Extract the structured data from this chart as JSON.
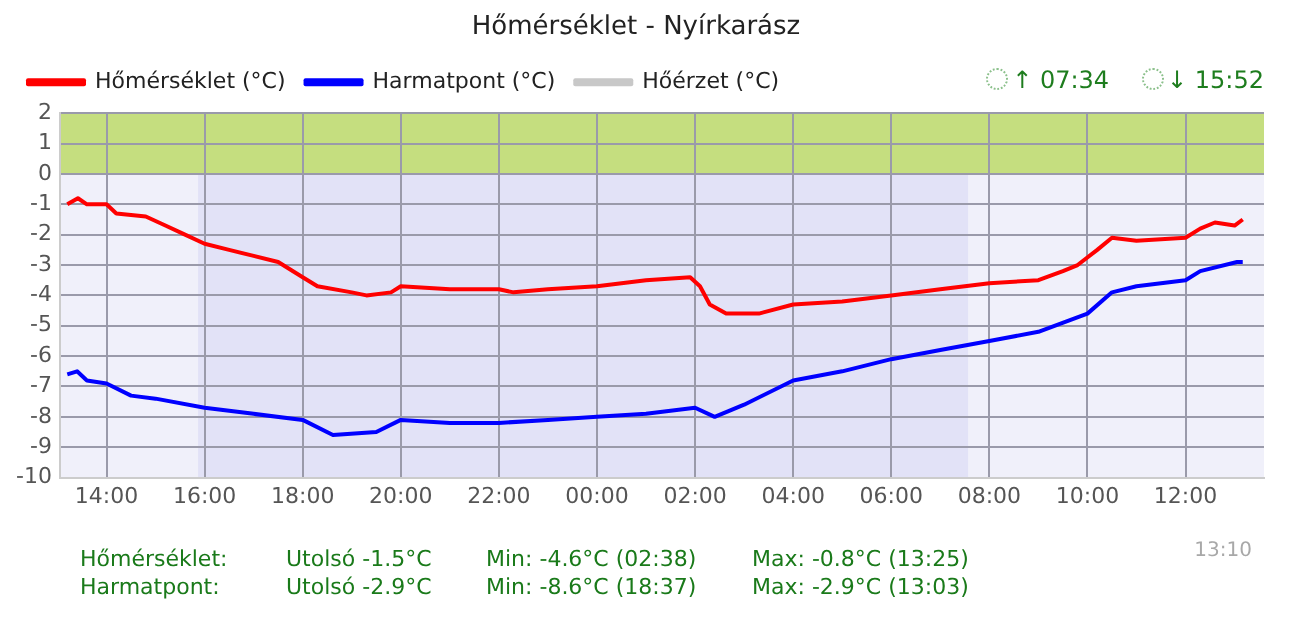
{
  "chart_data": {
    "type": "line",
    "title": "Hőmérséklet - Nyírkarász",
    "xlim": [
      "2000-01-01T13:03",
      "2000-01-02T13:36"
    ],
    "ylim": [
      -10,
      2
    ],
    "xticks": [
      {
        "value": "2000-01-01T14:00",
        "label": "14:00"
      },
      {
        "value": "2000-01-01T16:00",
        "label": "16:00"
      },
      {
        "value": "2000-01-01T18:00",
        "label": "18:00"
      },
      {
        "value": "2000-01-01T20:00",
        "label": "20:00"
      },
      {
        "value": "2000-01-01T22:00",
        "label": "22:00"
      },
      {
        "value": "2000-01-02T00:00",
        "label": "00:00"
      },
      {
        "value": "2000-01-02T02:00",
        "label": "02:00"
      },
      {
        "value": "2000-01-02T04:00",
        "label": "04:00"
      },
      {
        "value": "2000-01-02T06:00",
        "label": "06:00"
      },
      {
        "value": "2000-01-02T08:00",
        "label": "08:00"
      },
      {
        "value": "2000-01-02T10:00",
        "label": "10:00"
      },
      {
        "value": "2000-01-02T12:00",
        "label": "12:00"
      }
    ],
    "yticks": [
      -10,
      -9,
      -8,
      -7,
      -6,
      -5,
      -4,
      -3,
      -2,
      -1,
      0,
      1,
      2
    ],
    "grid": true,
    "legend": "top left",
    "marker": "none",
    "line_style": "solid",
    "series": [
      {
        "name": "Hőmérséklet (°C)",
        "color": "#ff0000",
        "x": [
          "2000-01-01T13:12",
          "2000-01-01T13:25",
          "2000-01-01T13:36",
          "2000-01-01T14:00",
          "2000-01-01T14:12",
          "2000-01-01T14:48",
          "2000-01-01T15:12",
          "2000-01-01T15:36",
          "2000-01-01T16:00",
          "2000-01-01T16:30",
          "2000-01-01T17:00",
          "2000-01-01T17:30",
          "2000-01-01T18:00",
          "2000-01-01T18:18",
          "2000-01-01T19:00",
          "2000-01-01T19:18",
          "2000-01-01T19:48",
          "2000-01-01T20:00",
          "2000-01-01T21:00",
          "2000-01-01T22:00",
          "2000-01-01T22:18",
          "2000-01-01T23:00",
          "2000-01-02T00:00",
          "2000-01-02T01:00",
          "2000-01-02T01:54",
          "2000-01-02T02:06",
          "2000-01-02T02:18",
          "2000-01-02T02:38",
          "2000-01-02T03:18",
          "2000-01-02T04:00",
          "2000-01-02T05:00",
          "2000-01-02T06:00",
          "2000-01-02T07:00",
          "2000-01-02T08:00",
          "2000-01-02T09:00",
          "2000-01-02T09:30",
          "2000-01-02T09:48",
          "2000-01-02T10:12",
          "2000-01-02T10:30",
          "2000-01-02T11:00",
          "2000-01-02T12:00",
          "2000-01-02T12:18",
          "2000-01-02T12:36",
          "2000-01-02T13:00",
          "2000-01-02T13:10"
        ],
        "values": [
          -1.0,
          -0.8,
          -1.0,
          -1.0,
          -1.3,
          -1.4,
          -1.7,
          -2.0,
          -2.3,
          -2.5,
          -2.7,
          -2.9,
          -3.4,
          -3.7,
          -3.9,
          -4.0,
          -3.9,
          -3.7,
          -3.8,
          -3.8,
          -3.9,
          -3.8,
          -3.7,
          -3.5,
          -3.4,
          -3.7,
          -4.3,
          -4.6,
          -4.6,
          -4.3,
          -4.2,
          -4.0,
          -3.8,
          -3.6,
          -3.5,
          -3.2,
          -3.0,
          -2.5,
          -2.1,
          -2.2,
          -2.1,
          -1.8,
          -1.6,
          -1.7,
          -1.5
        ]
      },
      {
        "name": "Harmatpont (°C)",
        "color": "#0000ff",
        "x": [
          "2000-01-01T13:12",
          "2000-01-01T13:24",
          "2000-01-01T13:36",
          "2000-01-01T14:00",
          "2000-01-01T14:30",
          "2000-01-01T15:00",
          "2000-01-01T16:00",
          "2000-01-01T17:00",
          "2000-01-01T18:00",
          "2000-01-01T18:37",
          "2000-01-01T19:30",
          "2000-01-01T20:00",
          "2000-01-01T21:00",
          "2000-01-01T22:00",
          "2000-01-01T23:00",
          "2000-01-02T00:00",
          "2000-01-02T01:00",
          "2000-01-02T02:00",
          "2000-01-02T02:24",
          "2000-01-02T03:00",
          "2000-01-02T04:00",
          "2000-01-02T05:00",
          "2000-01-02T06:00",
          "2000-01-02T07:00",
          "2000-01-02T08:00",
          "2000-01-02T09:00",
          "2000-01-02T10:00",
          "2000-01-02T10:30",
          "2000-01-02T11:00",
          "2000-01-02T12:00",
          "2000-01-02T12:18",
          "2000-01-02T13:03",
          "2000-01-02T13:10"
        ],
        "values": [
          -6.6,
          -6.5,
          -6.8,
          -6.9,
          -7.3,
          -7.4,
          -7.7,
          -7.9,
          -8.1,
          -8.6,
          -8.5,
          -8.1,
          -8.2,
          -8.2,
          -8.1,
          -8.0,
          -7.9,
          -7.7,
          -8.0,
          -7.6,
          -6.8,
          -6.5,
          -6.1,
          -5.8,
          -5.5,
          -5.2,
          -4.6,
          -3.9,
          -3.7,
          -3.5,
          -3.2,
          -2.9,
          -2.9
        ]
      },
      {
        "name": "Hőérzet (°C)",
        "color": "#c8c8c8"
      }
    ],
    "bands": [
      {
        "axis": "x",
        "from": "2000-01-01T15:52",
        "to": "2000-01-02T07:34",
        "color": "#e2e2f7"
      },
      {
        "axis": "y",
        "from": 0,
        "to": 2,
        "color": "#c5de7f"
      }
    ],
    "annotations": [
      "↑ 07:34",
      "↓ 15:52",
      "Hőmérséklet:",
      "Utolsó -1.5°C",
      "Min: -4.6°C (02:38)",
      "Max: -0.8°C (13:25)",
      "Harmatpont:",
      "Utolsó -2.9°C",
      "Min: -8.6°C (18:37)",
      "Max: -2.9°C (13:03)",
      "13:10"
    ]
  }
}
